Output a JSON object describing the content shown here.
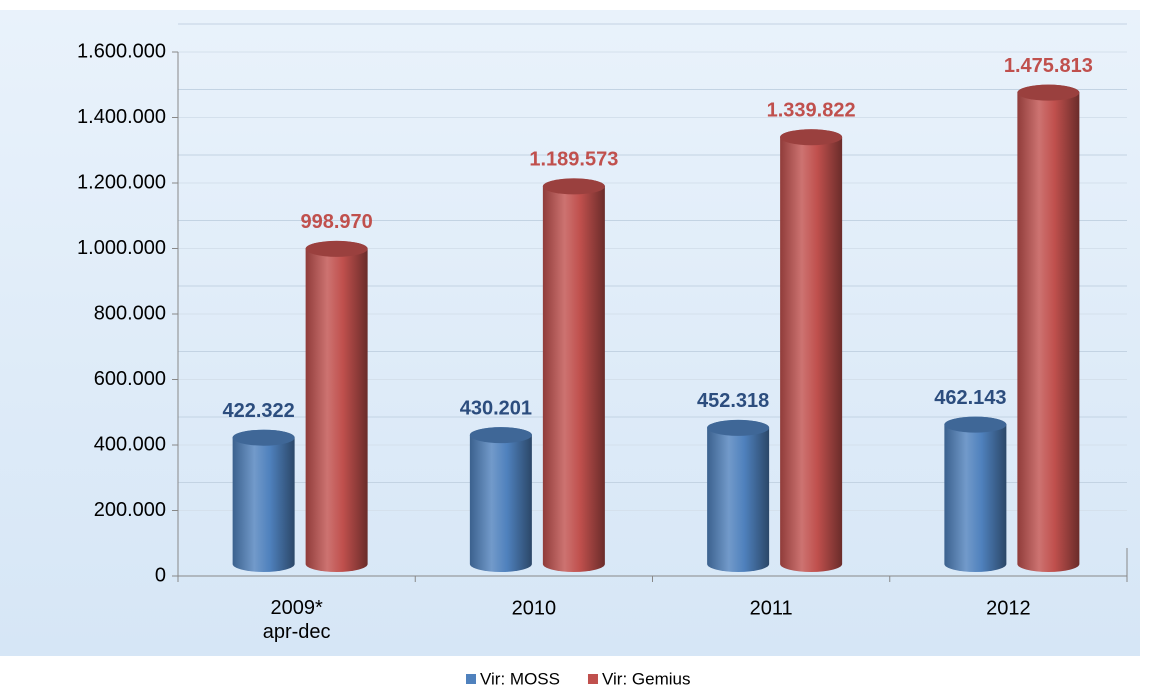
{
  "chart_data": {
    "type": "bar",
    "categories": [
      "2009*\napr-dec",
      "2010",
      "2011",
      "2012"
    ],
    "series": [
      {
        "name": "Vir: MOSS",
        "color": "#4f81bd",
        "label_color": "#2c4d7e",
        "values": [
          422322,
          430201,
          452318,
          462143
        ],
        "value_labels": [
          "422.322",
          "430.201",
          "452.318",
          "462.143"
        ]
      },
      {
        "name": "Vir: Gemius",
        "color": "#c0504d",
        "label_color": "#c0504d",
        "values": [
          998970,
          1189573,
          1339822,
          1475813
        ],
        "value_labels": [
          "998.970",
          "1.189.573",
          "1.339.822",
          "1.475.813"
        ]
      }
    ],
    "ylim": [
      0,
      1600000
    ],
    "yticks": [
      0,
      {
        "value": 200000,
        "label": "200.000"
      },
      {
        "value": 400000,
        "label": "400.000"
      },
      {
        "value": 600000,
        "label": "600.000"
      },
      {
        "value": 800000,
        "label": "800.000"
      },
      {
        "value": 1000000,
        "label": "1.000.000"
      },
      {
        "value": 1200000,
        "label": "1.200.000"
      },
      {
        "value": 1400000,
        "label": "1.400.000"
      },
      {
        "value": 1600000,
        "label": "1.600.000"
      }
    ],
    "grid": true,
    "legend": "bottom"
  }
}
